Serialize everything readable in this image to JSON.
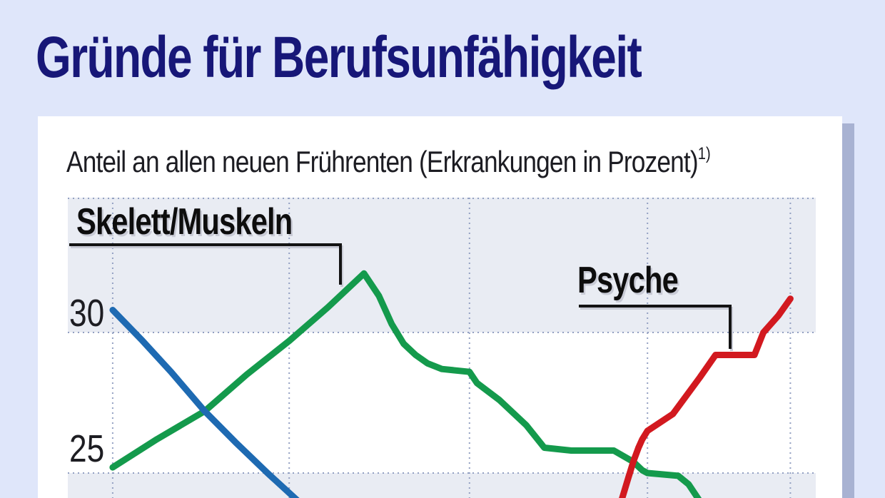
{
  "page": {
    "background": "#dfe6fa",
    "panel_bg": "#ffffff",
    "panel_shadow": "#a8b2d2"
  },
  "title": {
    "text": "Gründe für Berufsunfähigkeit",
    "color": "#171778"
  },
  "subtitle": {
    "text": "Anteil an allen neuen Frührenten (Erkrankungen in Prozent)",
    "footnote_marker": "1)"
  },
  "axis": {
    "ticks": [
      "30",
      "25"
    ]
  },
  "chart_data": {
    "type": "line",
    "title": "Gründe für Berufsunfähigkeit",
    "ylabel": "Anteil an allen neuen Frührenten (Erkrankungen in Prozent)",
    "y_ticks_visible": [
      30,
      25
    ],
    "y_range_visible": [
      24.0,
      34.8
    ],
    "grid": true,
    "grid_style": "dotted",
    "grid_color": "#93a0c2",
    "band_color": "#e9ecf3",
    "grid_x_rel": [
      0.06,
      0.296,
      0.537,
      0.775,
      0.966
    ],
    "x_axis_labels_visible": false,
    "legend_position": "inline-callouts",
    "series": [
      {
        "id": "green",
        "label": "Skelett/Muskeln",
        "color": "#149a4c",
        "points": [
          [
            0.06,
            25.2
          ],
          [
            0.119,
            26.2
          ],
          [
            0.183,
            27.2
          ],
          [
            0.239,
            28.5
          ],
          [
            0.296,
            29.7
          ],
          [
            0.348,
            30.9
          ],
          [
            0.396,
            32.1
          ],
          [
            0.416,
            31.3
          ],
          [
            0.433,
            30.3
          ],
          [
            0.449,
            29.6
          ],
          [
            0.465,
            29.2
          ],
          [
            0.481,
            28.9
          ],
          [
            0.5,
            28.7
          ],
          [
            0.537,
            28.6
          ],
          [
            0.547,
            28.2
          ],
          [
            0.577,
            27.6
          ],
          [
            0.613,
            26.7
          ],
          [
            0.637,
            25.9
          ],
          [
            0.673,
            25.8
          ],
          [
            0.73,
            25.8
          ],
          [
            0.756,
            25.4
          ],
          [
            0.768,
            25.1
          ],
          [
            0.775,
            25.0
          ],
          [
            0.816,
            24.9
          ],
          [
            0.83,
            24.6
          ],
          [
            0.845,
            24.0
          ]
        ]
      },
      {
        "id": "blue",
        "label": "",
        "color": "#1e6ab2",
        "points": [
          [
            0.06,
            30.8
          ],
          [
            0.1,
            29.7
          ],
          [
            0.138,
            28.6
          ],
          [
            0.183,
            27.2
          ],
          [
            0.224,
            26.1
          ],
          [
            0.267,
            25.0
          ],
          [
            0.308,
            24.0
          ]
        ]
      },
      {
        "id": "red",
        "label": "Psyche",
        "color": "#d2191f",
        "points": [
          [
            0.74,
            24.0
          ],
          [
            0.749,
            24.8
          ],
          [
            0.756,
            25.4
          ],
          [
            0.763,
            25.9
          ],
          [
            0.768,
            26.2
          ],
          [
            0.775,
            26.5
          ],
          [
            0.809,
            27.1
          ],
          [
            0.845,
            28.4
          ],
          [
            0.866,
            29.2
          ],
          [
            0.918,
            29.2
          ],
          [
            0.93,
            30.0
          ],
          [
            0.95,
            30.6
          ],
          [
            0.966,
            31.2
          ]
        ]
      }
    ],
    "annotations": [
      {
        "label": "Skelett/Muskeln",
        "points_to": "peak of green line (~32.1%)"
      },
      {
        "label": "Psyche",
        "points_to": "plateau of red line (~29.2%)"
      }
    ]
  }
}
